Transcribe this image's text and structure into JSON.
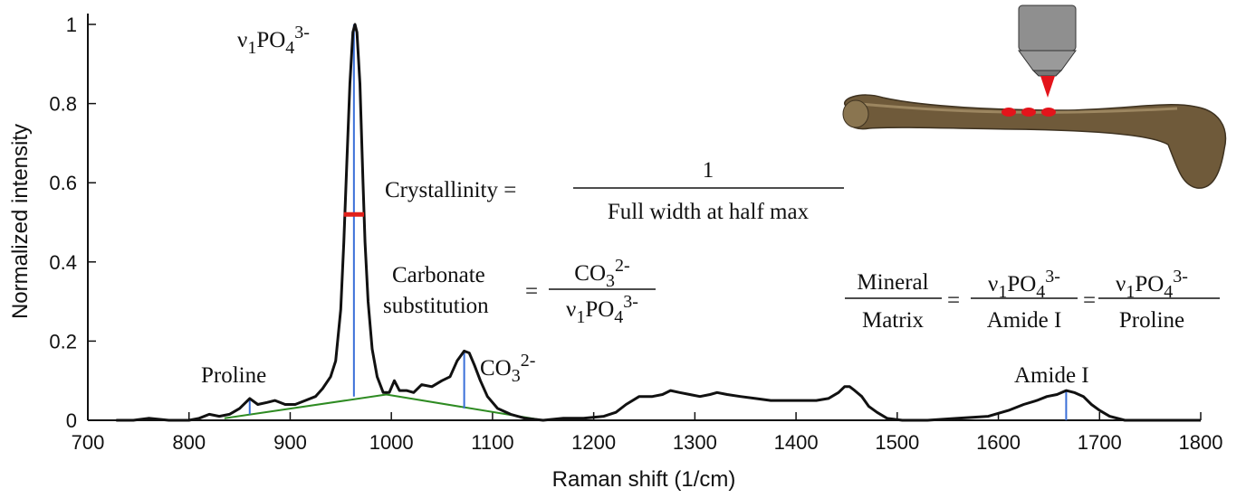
{
  "chart_data": {
    "type": "line",
    "x_label": "Raman shift (1/cm)",
    "y_label": "Normalized intensity",
    "xlim": [
      700,
      1800
    ],
    "xticks": [
      700,
      800,
      900,
      1000,
      1100,
      1200,
      1300,
      1400,
      1500,
      1600,
      1700,
      1800
    ],
    "ylim": [
      0,
      1
    ],
    "yticks": [
      0,
      0.2,
      0.4,
      0.6,
      0.8,
      1
    ],
    "series": [
      {
        "color": "#111111",
        "x": [
          728,
          745,
          760,
          780,
          800,
          810,
          820,
          830,
          840,
          850,
          860,
          868,
          877,
          885,
          895,
          905,
          915,
          925,
          932,
          940,
          945,
          950,
          953,
          956,
          959,
          962,
          964,
          966,
          969,
          972,
          974,
          977,
          981,
          986,
          992,
          998,
          1003,
          1008,
          1015,
          1022,
          1030,
          1040,
          1050,
          1058,
          1065,
          1072,
          1077,
          1082,
          1088,
          1095,
          1105,
          1118,
          1132,
          1150,
          1170,
          1190,
          1210,
          1222,
          1232,
          1245,
          1258,
          1268,
          1276,
          1285,
          1295,
          1305,
          1315,
          1322,
          1332,
          1345,
          1360,
          1375,
          1390,
          1405,
          1420,
          1432,
          1442,
          1448,
          1453,
          1458,
          1465,
          1472,
          1480,
          1490,
          1505,
          1530,
          1560,
          1590,
          1610,
          1625,
          1638,
          1648,
          1658,
          1667,
          1675,
          1684,
          1692,
          1700,
          1710,
          1725,
          1750,
          1800
        ],
        "values": [
          0,
          0,
          0.005,
          0,
          0,
          0.005,
          0.015,
          0.01,
          0.015,
          0.03,
          0.055,
          0.04,
          0.045,
          0.05,
          0.04,
          0.04,
          0.05,
          0.06,
          0.08,
          0.11,
          0.15,
          0.28,
          0.45,
          0.65,
          0.85,
          0.98,
          1,
          0.98,
          0.85,
          0.6,
          0.45,
          0.3,
          0.18,
          0.11,
          0.07,
          0.07,
          0.1,
          0.075,
          0.075,
          0.07,
          0.09,
          0.085,
          0.1,
          0.11,
          0.15,
          0.175,
          0.17,
          0.14,
          0.1,
          0.06,
          0.03,
          0.015,
          0.005,
          0,
          0.005,
          0.005,
          0.01,
          0.02,
          0.04,
          0.06,
          0.06,
          0.065,
          0.075,
          0.07,
          0.065,
          0.06,
          0.065,
          0.07,
          0.065,
          0.06,
          0.055,
          0.05,
          0.05,
          0.05,
          0.05,
          0.055,
          0.07,
          0.085,
          0.085,
          0.075,
          0.06,
          0.035,
          0.02,
          0.005,
          0,
          0,
          0.005,
          0.01,
          0.025,
          0.04,
          0.05,
          0.06,
          0.065,
          0.075,
          0.07,
          0.06,
          0.04,
          0.025,
          0.01,
          0,
          0,
          0
        ]
      }
    ],
    "baseline": {
      "color": "#2e8b22",
      "x": [
        835,
        995,
        1150
      ],
      "values": [
        0.005,
        0.065,
        0
      ]
    },
    "peak_lines": {
      "color": "#3a6fd8",
      "x": [
        860,
        963,
        1072,
        1667
      ],
      "base": [
        0.015,
        0.06,
        0.03,
        0
      ],
      "values": [
        0.055,
        1,
        0.175,
        0.075
      ]
    },
    "fwhm": {
      "color": "#e0201b",
      "x": [
        953,
        973
      ],
      "value": 0.52
    },
    "labels": {
      "v1po4": [
        "ν",
        "1",
        "PO",
        "4",
        "3-"
      ],
      "proline": "Proline",
      "co3": [
        "CO",
        "3",
        "2-"
      ],
      "amide": "Amide I"
    },
    "formulas": {
      "crystallinity": {
        "left": "Crystallinity =",
        "num": "1",
        "den": "Full width at half max"
      },
      "carbonate": {
        "left1": "Carbonate",
        "left2": "substitution",
        "eq": "=",
        "num": [
          "CO",
          "3",
          "2-"
        ],
        "den": [
          "ν",
          "1",
          "PO",
          "4",
          "3-"
        ]
      },
      "mineral": {
        "num1": "Mineral",
        "den1": "Matrix",
        "eq1": "=",
        "num2": [
          "ν",
          "1",
          "PO",
          "4",
          "3-"
        ],
        "den2": "Amide I",
        "eq2": "=",
        "num3": [
          "ν",
          "1",
          "PO",
          "4",
          "3-"
        ],
        "den3": "Proline"
      }
    }
  }
}
